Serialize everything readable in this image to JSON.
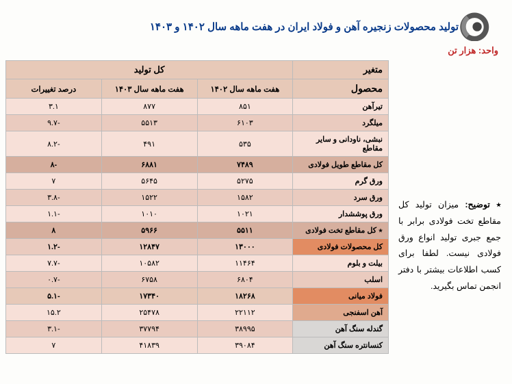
{
  "title": "تولید محصولات زنجیره آهن و فولاد ایران در هفت ماهه سال ۱۴۰۲ و ۱۴۰۳",
  "unit": "واحد: هزار تن",
  "note_label": "٭ توضیح:",
  "note_text": "میزان تولید کل مقاطع تخت فولادی برابر با جمع جبری تولید انواع ورق فولادی نیست. لطفا برای کسب اطلاعات بیشتر با دفتر انجمن تماس بگیرید.",
  "columns": {
    "var_label": "متغیر",
    "product": "محصول",
    "total_prod": "کل تولید",
    "y1402": "هفت ماهه سال ۱۴۰۲",
    "y1403": "هفت ماهه سال ۱۴۰۳",
    "pct": "درصد تغییرات"
  },
  "rows": [
    {
      "name": "تیرآهن",
      "y1402": "۸۵۱",
      "y1403": "۸۷۷",
      "pct": "۳.۱",
      "bg": "#f7e0d8"
    },
    {
      "name": "میلگرد",
      "y1402": "۶۱۰۳",
      "y1403": "۵۵۱۳",
      "pct": "-۹.۷",
      "bg": "#eacbbf"
    },
    {
      "name": "نبشی، ناودانی و سایر مقاطع",
      "y1402": "۵۳۵",
      "y1403": "۴۹۱",
      "pct": "-۸.۲",
      "bg": "#f7e0d8"
    },
    {
      "name": "کل مقاطع طویل فولادی",
      "y1402": "۷۴۸۹",
      "y1403": "۶۸۸۱",
      "pct": "-۸",
      "bg": "#d6af9e",
      "sum": true,
      "name_bg": "#d6af9e"
    },
    {
      "name": "ورق گرم",
      "y1402": "۵۲۷۵",
      "y1403": "۵۶۴۵",
      "pct": "۷",
      "bg": "#f7e0d8"
    },
    {
      "name": "ورق سرد",
      "y1402": "۱۵۸۲",
      "y1403": "۱۵۲۲",
      "pct": "-۳.۸",
      "bg": "#eacbbf"
    },
    {
      "name": "ورق پوششدار",
      "y1402": "۱۰۲۱",
      "y1403": "۱۰۱۰",
      "pct": "-۱.۱",
      "bg": "#f7e0d8"
    },
    {
      "name": "٭ کل مقاطع تخت فولادی",
      "y1402": "۵۵۱۱",
      "y1403": "۵۹۶۶",
      "pct": "۸",
      "bg": "#d6af9e",
      "sum": true,
      "name_bg": "#d6af9e"
    },
    {
      "name": "کل محصولات فولادی",
      "y1402": "۱۳۰۰۰",
      "y1403": "۱۲۸۴۷",
      "pct": "-۱.۲",
      "bg": "#eacbbf",
      "sum": true,
      "name_bg": "#e28c62"
    },
    {
      "name": "بیلت و بلوم",
      "y1402": "۱۱۴۶۴",
      "y1403": "۱۰۵۸۲",
      "pct": "-۷.۷",
      "bg": "#f7e0d8"
    },
    {
      "name": "اسلب",
      "y1402": "۶۸۰۴",
      "y1403": "۶۷۵۸",
      "pct": "-۰.۷",
      "bg": "#eacbbf"
    },
    {
      "name": "فولاد میانی",
      "y1402": "۱۸۲۶۸",
      "y1403": "۱۷۳۴۰",
      "pct": "-۵.۱",
      "bg": "#e7c9b8",
      "sum": true,
      "name_bg": "#e28c62"
    },
    {
      "name": "آهن اسفنجی",
      "y1402": "۲۲۱۱۲",
      "y1403": "۲۵۴۷۸",
      "pct": "۱۵.۲",
      "bg": "#f7e0d8",
      "name_bg": "#e0aa8e"
    },
    {
      "name": "گندله سنگ آهن",
      "y1402": "۳۸۹۹۵",
      "y1403": "۳۷۷۹۴",
      "pct": "-۳.۱",
      "bg": "#eacbbf",
      "name_bg": "#d9d7d5"
    },
    {
      "name": "کنسانتره سنگ آهن",
      "y1402": "۳۹۰۸۴",
      "y1403": "۴۱۸۳۹",
      "pct": "۷",
      "bg": "#f7e0d8",
      "name_bg": "#d9d7d5"
    }
  ],
  "col_widths": {
    "name": "150px",
    "y1402": "140px",
    "y1403": "140px",
    "pct": "130px"
  }
}
